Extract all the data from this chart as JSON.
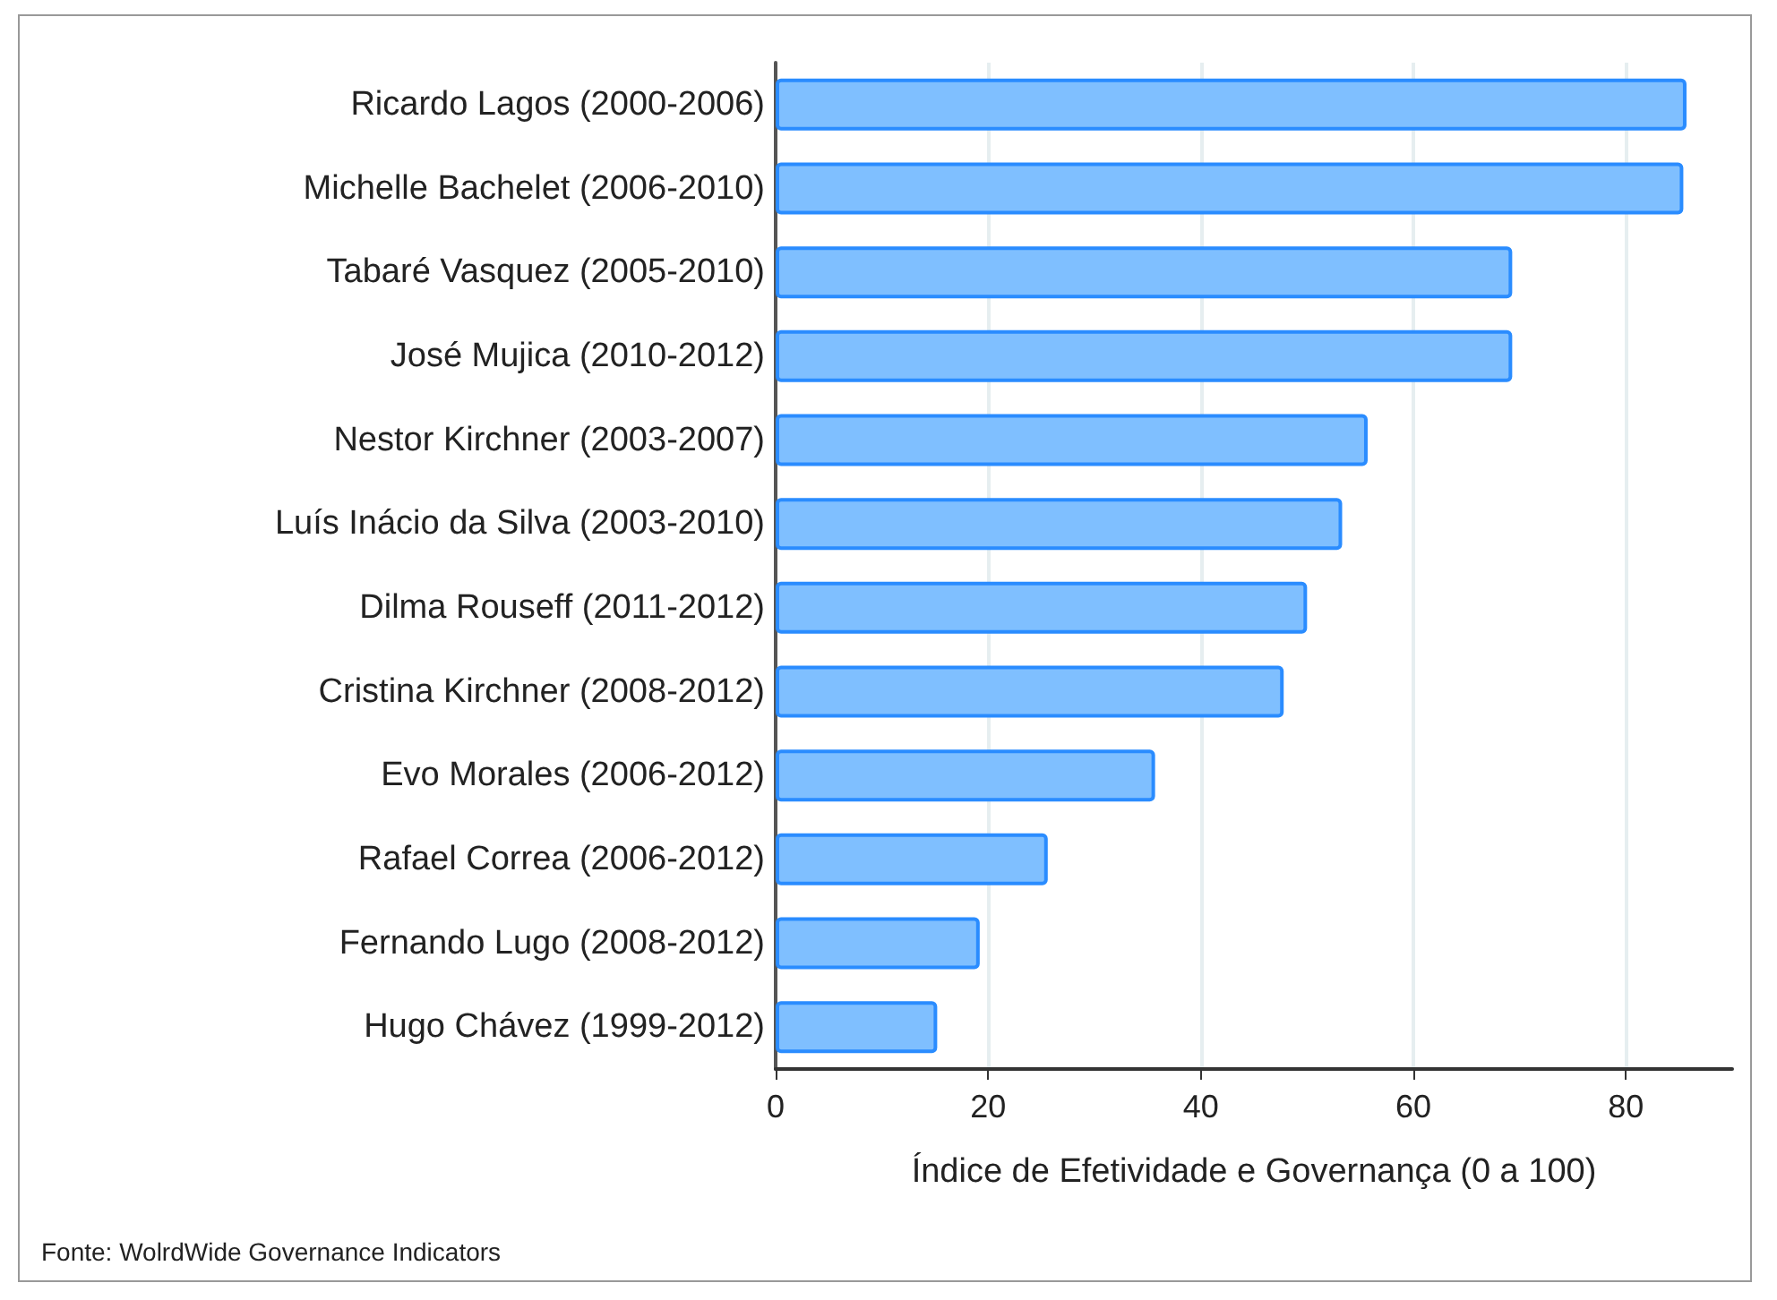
{
  "chart_data": {
    "type": "bar",
    "orientation": "horizontal",
    "xlabel": "Índice de Efetividade e Governança (0 a 100)",
    "categories": [
      "Ricardo Lagos (2000-2006)",
      "Michelle Bachelet (2006-2010)",
      "Tabaré Vasquez (2005-2010)",
      "José Mujica (2010-2012)",
      "Nestor Kirchner (2003-2007)",
      "Luís Inácio da Silva (2003-2010)",
      "Dilma Rouseff (2011-2012)",
      "Cristina Kirchner (2008-2012)",
      "Evo Morales (2006-2012)",
      "Rafael Correa (2006-2012)",
      "Fernando Lugo (2008-2012)",
      "Hugo Chávez (1999-2012)"
    ],
    "values": [
      85.7,
      85.4,
      69.3,
      69.3,
      55.7,
      53.3,
      50.0,
      47.8,
      35.7,
      25.6,
      19.2,
      15.2
    ],
    "color": "#7fbfff",
    "xlim": [
      0,
      90
    ],
    "xticks": [
      0,
      20,
      40,
      60,
      80
    ],
    "grid": "x",
    "annotations": [
      "Fonte: WolrdWide Governance Indicators"
    ]
  }
}
